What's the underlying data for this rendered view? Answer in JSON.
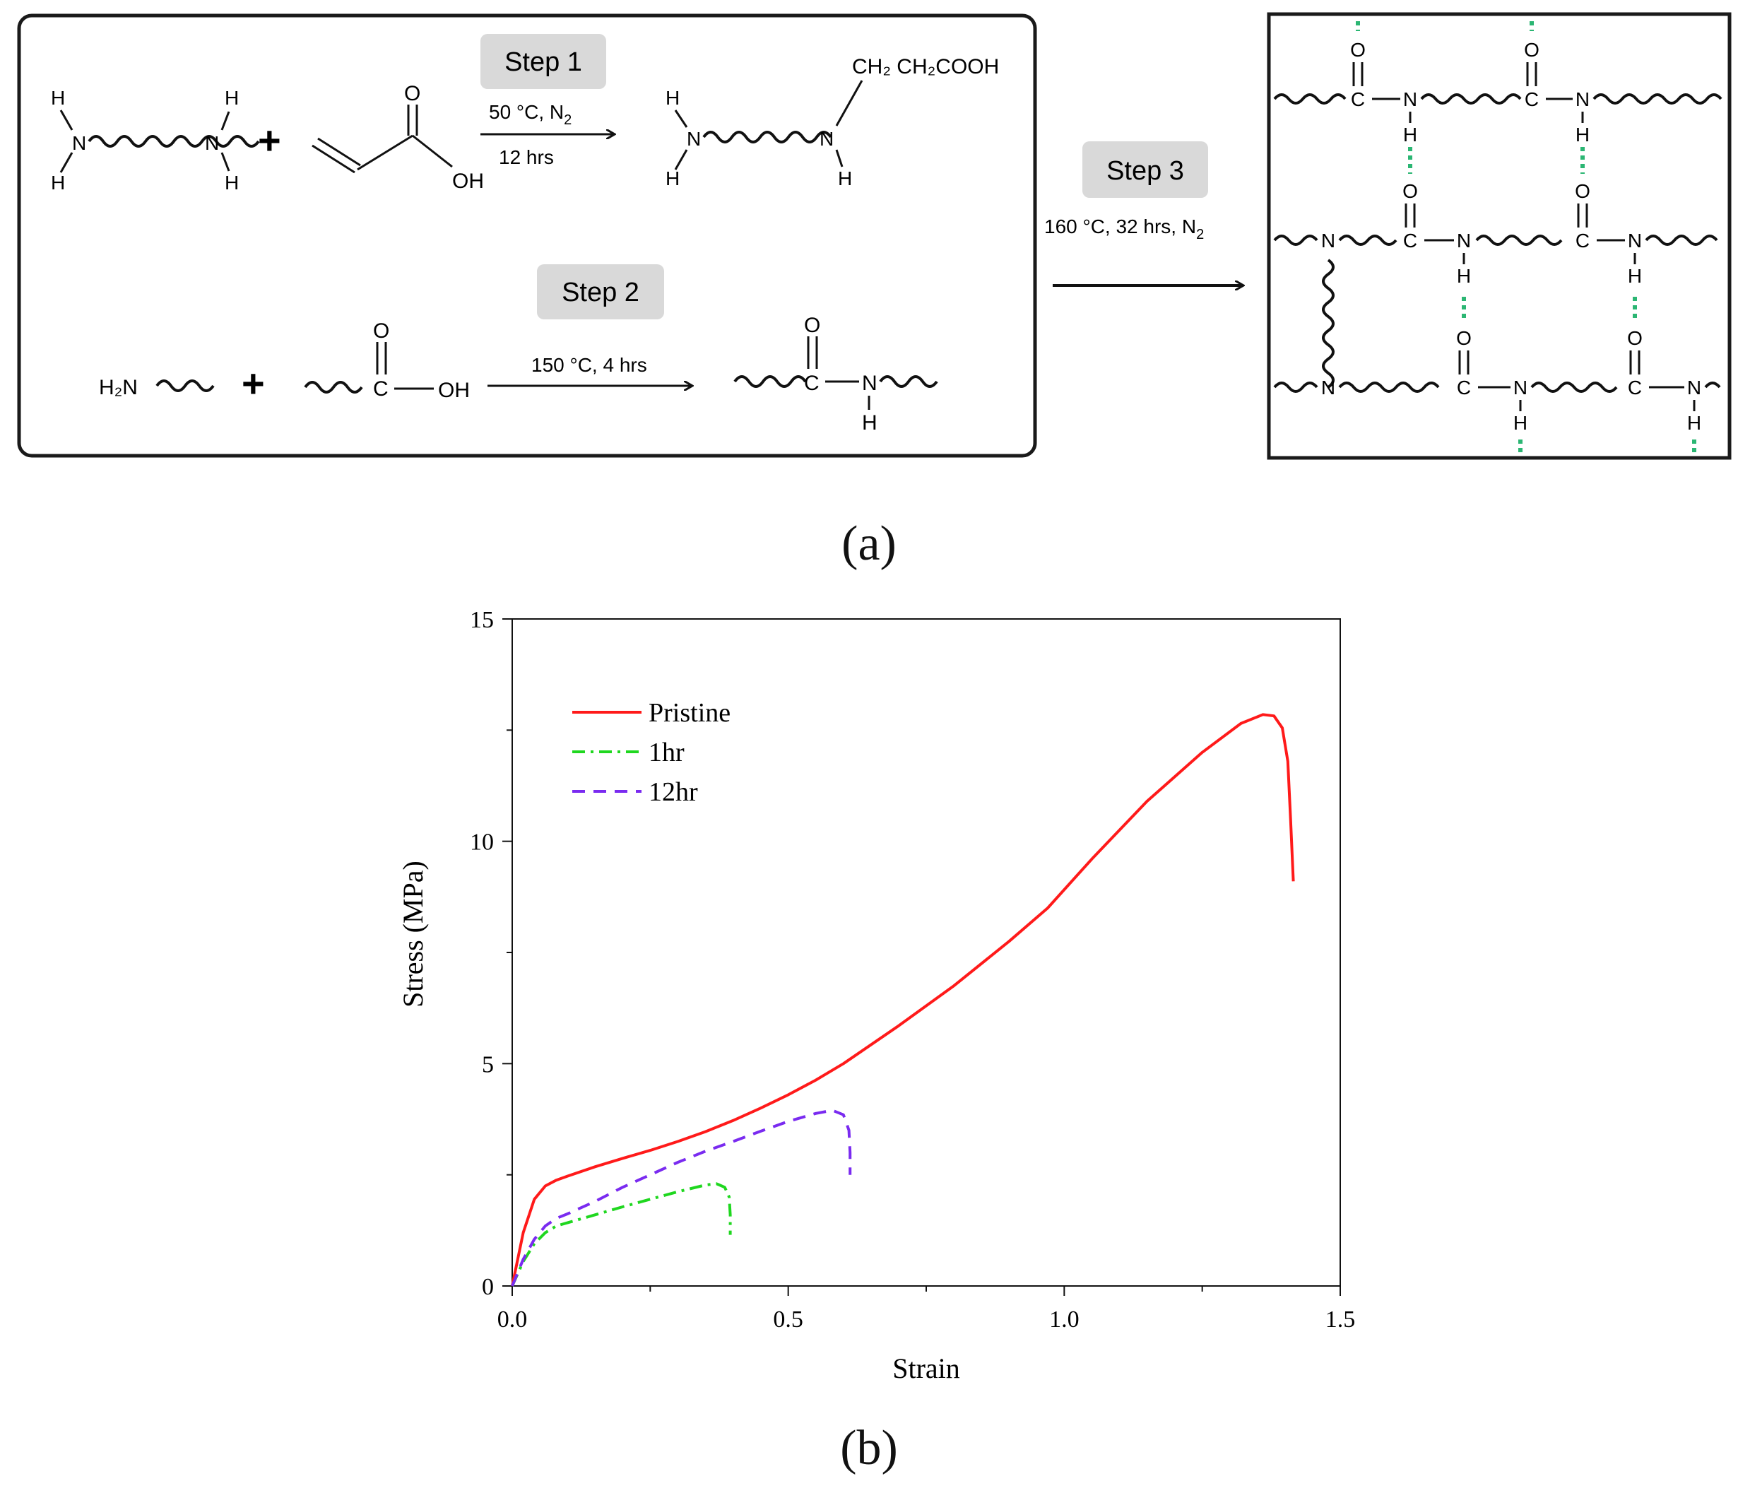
{
  "scheme": {
    "step1": {
      "badge": "Step 1",
      "condition_top_main": "50 °C, N",
      "condition_top_sub": "2",
      "condition_bottom": "12 hrs",
      "reactant_atoms": {
        "N": "N",
        "H": "H"
      },
      "plus": "+",
      "acid_O": "O",
      "acid_OH": "OH",
      "product_chain": "CH₂ CH₂COOH"
    },
    "step2": {
      "badge": "Step 2",
      "condition": "150 °C, 4 hrs",
      "amine": "H₂N",
      "acid_C": "C",
      "acid_OH": "OH",
      "acid_O": "O",
      "product_C": "C",
      "product_N": "N",
      "product_H": "H",
      "product_O": "O"
    },
    "step3": {
      "badge": "Step 3",
      "condition_main": "160 °C, 32 hrs, N",
      "condition_sub": "2"
    },
    "network_atoms": {
      "C": "C",
      "N": "N",
      "H": "H",
      "O": "O"
    },
    "bond_dash_color": "#2bb673"
  },
  "panel_labels": {
    "a": "(a)",
    "b": "(b)"
  },
  "chart_data": {
    "type": "line",
    "xlabel": "Strain",
    "ylabel": "Stress (MPa)",
    "xlim": [
      0,
      1.5
    ],
    "ylim": [
      0,
      15
    ],
    "xticks": [
      "0.0",
      "0.5",
      "1.0",
      "1.5"
    ],
    "yticks": [
      "0",
      "5",
      "10",
      "15"
    ],
    "grid": false,
    "legend_position": "top-left",
    "series": [
      {
        "name": "Pristine",
        "color": "#ff1a1a",
        "dash": "solid",
        "x": [
          0,
          0.01,
          0.02,
          0.04,
          0.06,
          0.08,
          0.1,
          0.15,
          0.2,
          0.25,
          0.3,
          0.35,
          0.4,
          0.45,
          0.5,
          0.55,
          0.6,
          0.7,
          0.8,
          0.9,
          0.97,
          1.05,
          1.15,
          1.25,
          1.32,
          1.36,
          1.38,
          1.395,
          1.405,
          1.41,
          1.415
        ],
        "y": [
          0,
          0.6,
          1.2,
          1.95,
          2.25,
          2.38,
          2.47,
          2.68,
          2.87,
          3.05,
          3.25,
          3.47,
          3.72,
          4.0,
          4.3,
          4.63,
          5.0,
          5.85,
          6.75,
          7.75,
          8.5,
          9.6,
          10.9,
          12.0,
          12.65,
          12.85,
          12.82,
          12.55,
          11.8,
          10.5,
          9.1
        ]
      },
      {
        "name": "1hr",
        "color": "#1fd71f",
        "dash": "dashdot",
        "x": [
          0,
          0.02,
          0.04,
          0.06,
          0.08,
          0.1,
          0.15,
          0.2,
          0.25,
          0.3,
          0.35,
          0.37,
          0.385,
          0.393,
          0.395,
          0.395
        ],
        "y": [
          0,
          0.55,
          0.95,
          1.2,
          1.35,
          1.42,
          1.6,
          1.78,
          1.95,
          2.12,
          2.27,
          2.3,
          2.22,
          2.0,
          1.6,
          1.15
        ]
      },
      {
        "name": "12hr",
        "color": "#7a2bf0",
        "dash": "dashed",
        "x": [
          0,
          0.02,
          0.04,
          0.06,
          0.08,
          0.1,
          0.15,
          0.2,
          0.25,
          0.3,
          0.35,
          0.4,
          0.45,
          0.5,
          0.55,
          0.58,
          0.6,
          0.61,
          0.612,
          0.612
        ],
        "y": [
          0,
          0.6,
          1.05,
          1.35,
          1.52,
          1.62,
          1.9,
          2.22,
          2.5,
          2.78,
          3.03,
          3.25,
          3.48,
          3.7,
          3.88,
          3.95,
          3.85,
          3.5,
          3.0,
          2.5
        ]
      }
    ]
  }
}
